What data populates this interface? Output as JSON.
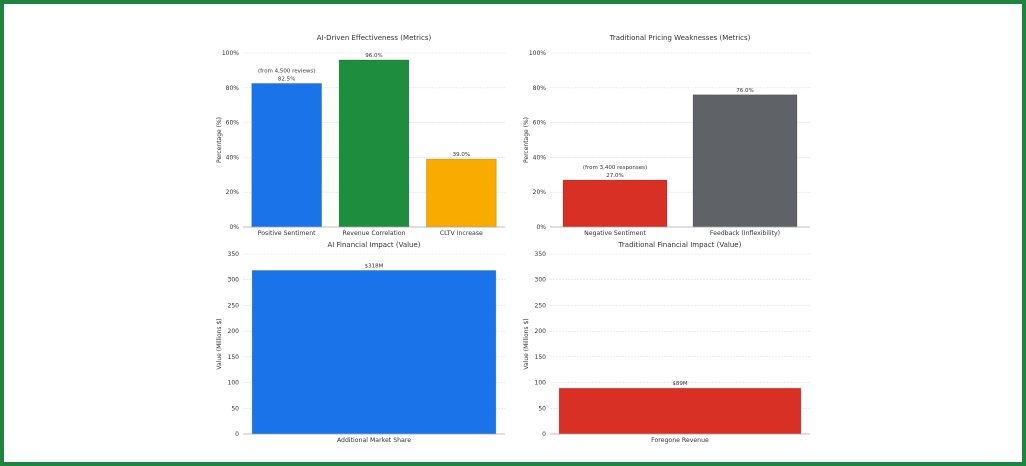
{
  "chart_data": [
    {
      "type": "bar",
      "title": "AI-Driven Effectiveness (Metrics)",
      "ylabel": "Percentage (%)",
      "xlabel": "",
      "ylim": [
        0,
        100
      ],
      "yticks": [
        "0%",
        "20%",
        "40%",
        "60%",
        "80%",
        "100%"
      ],
      "grid": true,
      "categories": [
        "Positive Sentiment",
        "Revenue Correlation",
        "CLTV Increase"
      ],
      "values": [
        82.5,
        96.0,
        39.0
      ],
      "labels": [
        "82.5%",
        "96.0%",
        "39.0%"
      ],
      "annotations": [
        "(from 4,500 reviews)",
        "",
        ""
      ],
      "colors": [
        "#1a73e8",
        "#1e8e3e",
        "#f9ab00"
      ]
    },
    {
      "type": "bar",
      "title": "Traditional Pricing Weaknesses (Metrics)",
      "ylabel": "Percentage (%)",
      "xlabel": "",
      "ylim": [
        0,
        100
      ],
      "yticks": [
        "0%",
        "20%",
        "40%",
        "60%",
        "80%",
        "100%"
      ],
      "grid": true,
      "categories": [
        "Negative Sentiment",
        "Feedback (Inflexibility)"
      ],
      "values": [
        27.0,
        76.0
      ],
      "labels": [
        "27.0%",
        "76.0%"
      ],
      "annotations": [
        "(from 3,400 responses)",
        ""
      ],
      "colors": [
        "#d93025",
        "#5f6368"
      ]
    },
    {
      "type": "bar",
      "title": "AI Financial Impact (Value)",
      "ylabel": "Value (Millions $)",
      "xlabel": "",
      "ylim": [
        0,
        350
      ],
      "yticks": [
        "0",
        "50",
        "100",
        "150",
        "200",
        "250",
        "300",
        "350"
      ],
      "grid": true,
      "categories": [
        "Additional Market Share"
      ],
      "values": [
        318
      ],
      "labels": [
        "$318M"
      ],
      "annotations": [
        ""
      ],
      "colors": [
        "#1a73e8"
      ]
    },
    {
      "type": "bar",
      "title": "Traditional Financial Impact (Value)",
      "ylabel": "Value (Millions $)",
      "xlabel": "",
      "ylim": [
        0,
        350
      ],
      "yticks": [
        "0",
        "50",
        "100",
        "150",
        "200",
        "250",
        "300",
        "350"
      ],
      "grid": true,
      "categories": [
        "Foregone Revenue"
      ],
      "values": [
        89
      ],
      "labels": [
        "$89M"
      ],
      "annotations": [
        ""
      ],
      "colors": [
        "#d93025"
      ]
    }
  ],
  "colors": {
    "frame": "#1e8540"
  }
}
